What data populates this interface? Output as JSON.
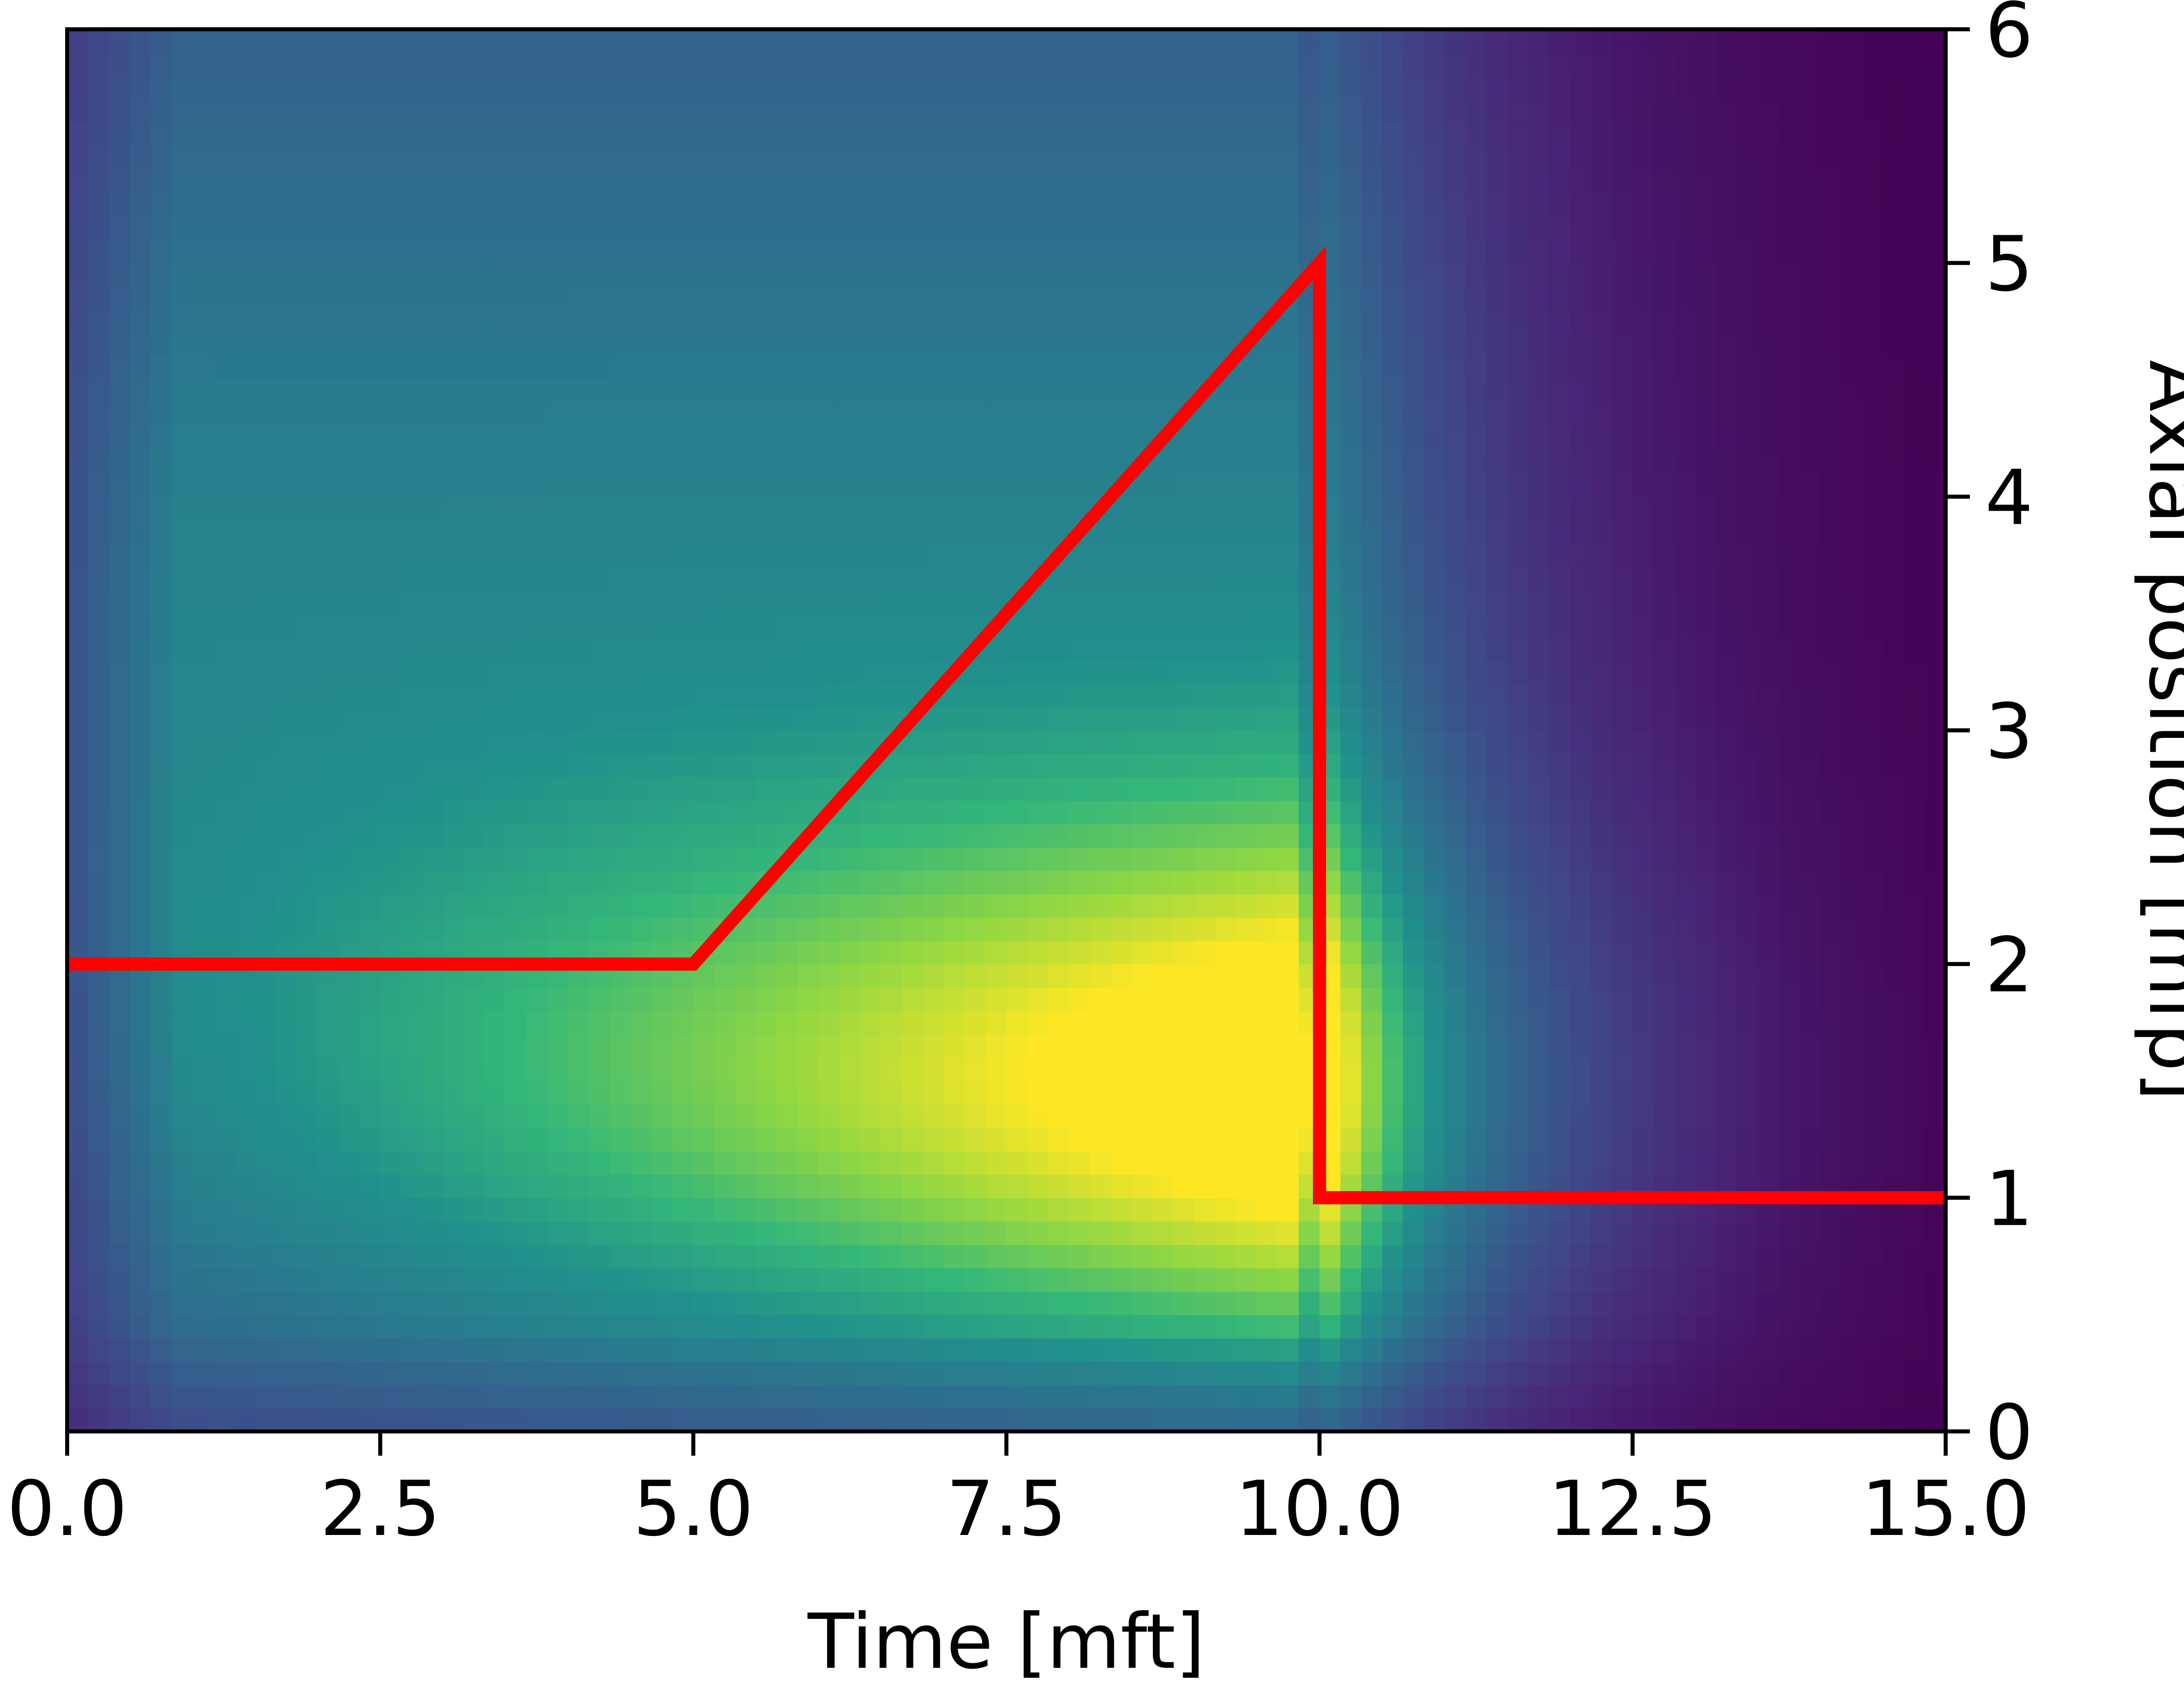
{
  "chart_data": {
    "type": "heatmap",
    "title": "",
    "xlabel": "Time [mft]",
    "ylabel": "Axial position [mfp]",
    "xlim": [
      0,
      15
    ],
    "ylim": [
      0,
      6
    ],
    "x_ticks": [
      "0.0",
      "2.5",
      "5.0",
      "7.5",
      "10.0",
      "12.5",
      "15.0"
    ],
    "y_ticks": [
      "0",
      "1",
      "2",
      "3",
      "4",
      "5",
      "6"
    ],
    "y_axis_side": "right",
    "grid": false,
    "colormap": "viridis",
    "overlay_line": {
      "color": "#ff0000",
      "x": [
        0,
        5,
        10,
        10,
        15
      ],
      "y": [
        2,
        2,
        5,
        1,
        1
      ]
    }
  }
}
